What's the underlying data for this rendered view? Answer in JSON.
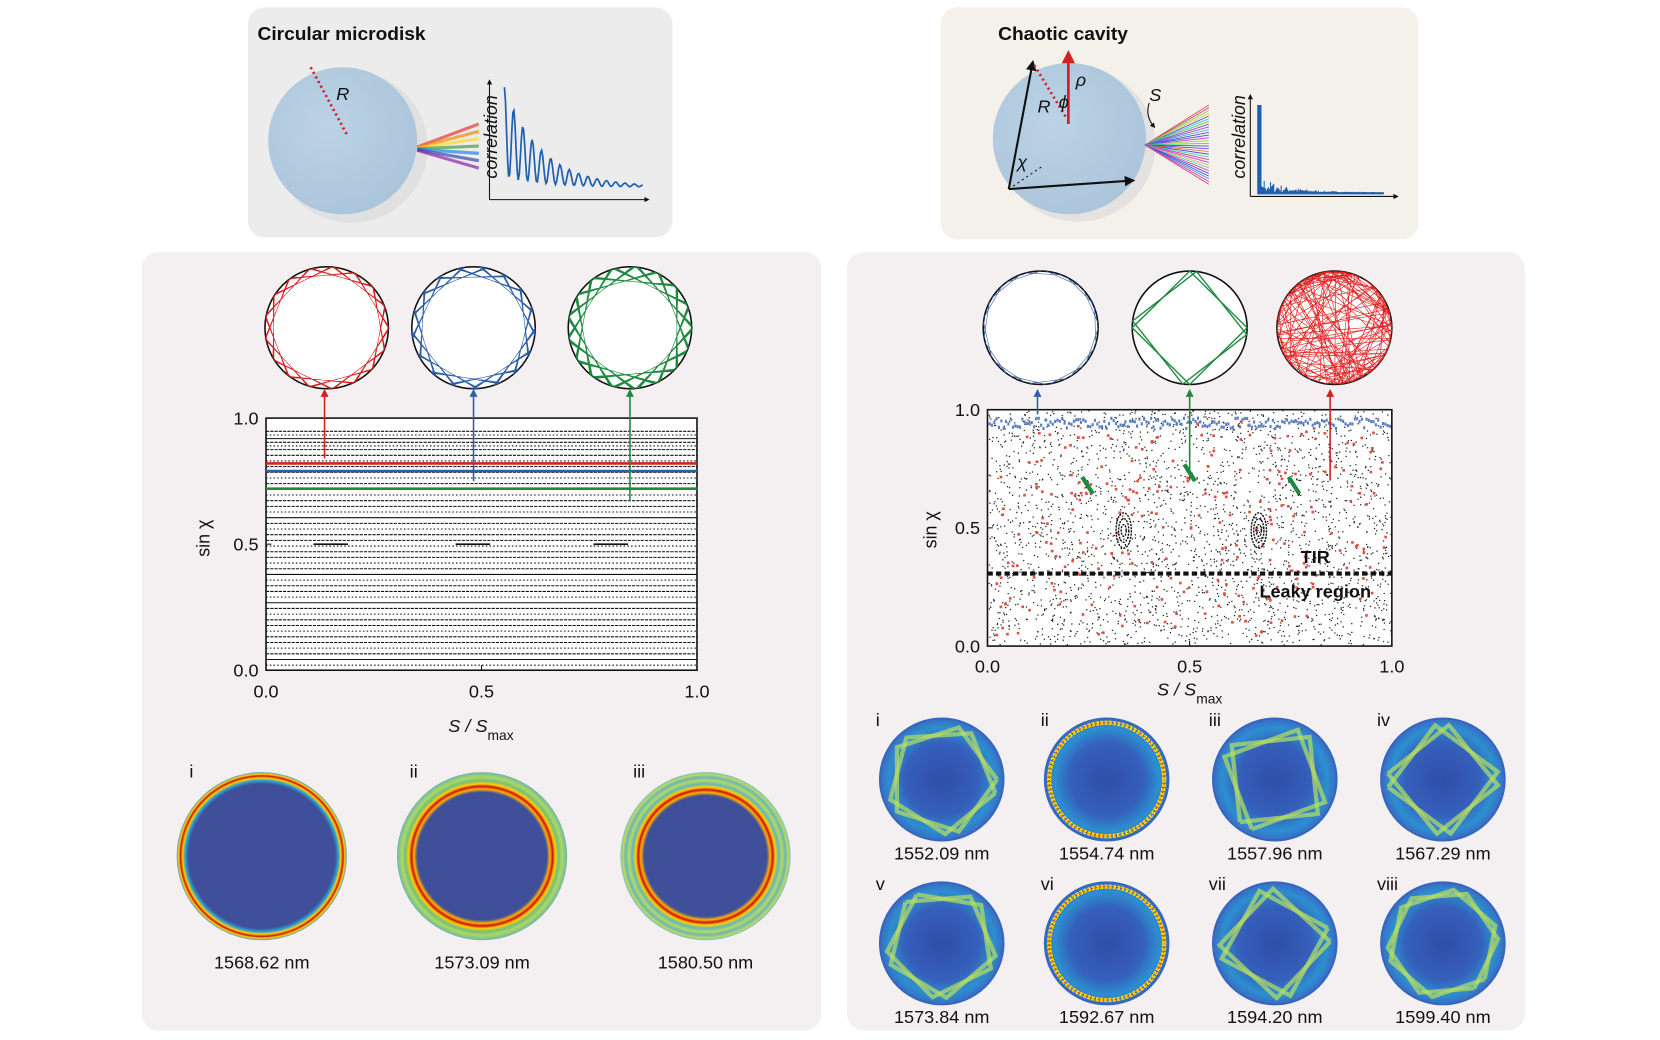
{
  "left": {
    "header": {
      "title": "Circular microdisk",
      "radius_label": "R",
      "plot_label": "correlation"
    },
    "plot": {
      "y_label": "sin χ",
      "x_label": "S / S",
      "x_label_sub": "max",
      "xlim": [
        0,
        1
      ],
      "ylim": [
        0,
        1
      ],
      "xticks": [
        {
          "value": 0,
          "label": "0.0"
        },
        {
          "value": 0.5,
          "label": "0.5"
        },
        {
          "value": 1,
          "label": "1.0"
        }
      ],
      "yticks": [
        {
          "value": 0,
          "label": "0.0"
        },
        {
          "value": 0.5,
          "label": "0.5"
        },
        {
          "value": 1,
          "label": "1.0"
        }
      ]
    },
    "modes": [
      {
        "numeral": "i",
        "wavelength": "1568.62 nm"
      },
      {
        "numeral": "ii",
        "wavelength": "1573.09 nm"
      },
      {
        "numeral": "iii",
        "wavelength": "1580.50 nm"
      }
    ]
  },
  "right": {
    "header": {
      "title": "Chaotic cavity",
      "radius_label": "R",
      "rho_label": "ρ",
      "phi_label": "ϕ",
      "chi_label": "χ",
      "s_label": "S",
      "plot_label": "correlation"
    },
    "plot": {
      "y_label": "sin χ",
      "x_label": "S / S",
      "x_label_sub": "max",
      "tir_label": "TIR",
      "leaky_label": "Leaky region",
      "xlim": [
        0,
        1
      ],
      "ylim": [
        0,
        1
      ],
      "xticks": [
        {
          "value": 0,
          "label": "0.0"
        },
        {
          "value": 0.5,
          "label": "0.5"
        },
        {
          "value": 1,
          "label": "1.0"
        }
      ],
      "yticks": [
        {
          "value": 0,
          "label": "0.0"
        },
        {
          "value": 0.5,
          "label": "0.5"
        },
        {
          "value": 1,
          "label": "1.0"
        }
      ]
    },
    "modes": [
      {
        "numeral": "i",
        "wavelength": "1552.09 nm"
      },
      {
        "numeral": "ii",
        "wavelength": "1554.74 nm"
      },
      {
        "numeral": "iii",
        "wavelength": "1557.96 nm"
      },
      {
        "numeral": "iv",
        "wavelength": "1567.29 nm"
      },
      {
        "numeral": "v",
        "wavelength": "1573.84 nm"
      },
      {
        "numeral": "vi",
        "wavelength": "1592.67 nm"
      },
      {
        "numeral": "vii",
        "wavelength": "1594.20 nm"
      },
      {
        "numeral": "viii",
        "wavelength": "1599.40 nm"
      }
    ]
  }
}
